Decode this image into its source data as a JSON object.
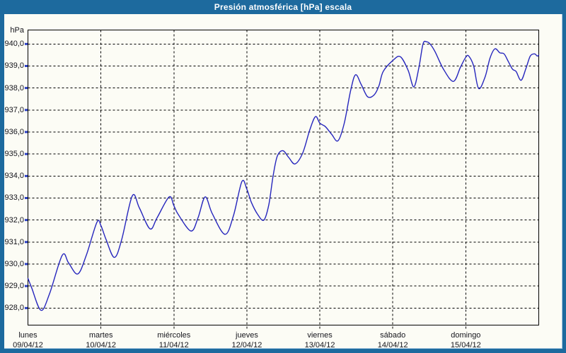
{
  "window": {
    "title": "Presión atmosférica [hPa] escala"
  },
  "colors": {
    "frame": "#1d6a9e",
    "titlebar_text": "#ffffff",
    "content_bg": "#fcfcf5",
    "grid": "#000000",
    "line": "#2626bd",
    "y_tick": "#2b3fc4",
    "label_text": "#15151c"
  },
  "chart_data": {
    "type": "line",
    "title": "Presión atmosférica [hPa] escala",
    "grid": "dashed",
    "legend": "none",
    "y_axis": {
      "unit": "hPa",
      "top_value": 940,
      "step": 1,
      "decimal_separator": ",",
      "labels": [
        "940,0",
        "939,0",
        "938,0",
        "937,0",
        "936,0",
        "935,0",
        "934,0",
        "933,0",
        "932,0",
        "931,0",
        "930,0",
        "929,0",
        "928,0"
      ]
    },
    "ylim": [
      927.2,
      940.6
    ],
    "x_axis": {
      "range_days": [
        0,
        7
      ],
      "days": [
        {
          "name": "lunes",
          "date": "09/04/12"
        },
        {
          "name": "martes",
          "date": "10/04/12"
        },
        {
          "name": "miércoles",
          "date": "11/04/12"
        },
        {
          "name": "jueves",
          "date": "12/04/12"
        },
        {
          "name": "viernes",
          "date": "13/04/12"
        },
        {
          "name": "sábado",
          "date": "14/04/12"
        },
        {
          "name": "domingo",
          "date": "15/04/12"
        }
      ]
    },
    "series": [
      {
        "name": "presión atmosférica",
        "unit": "hPa",
        "color": "#2626bd",
        "points": [
          [
            0,
            929.35
          ],
          [
            0.053,
            928.9
          ],
          [
            0.179,
            927.9
          ],
          [
            0.296,
            928.65
          ],
          [
            0.47,
            930.4
          ],
          [
            0.557,
            930.05
          ],
          [
            0.683,
            929.55
          ],
          [
            0.8,
            930.4
          ],
          [
            0.945,
            931.9
          ],
          [
            1,
            931.75
          ],
          [
            1.072,
            931.1
          ],
          [
            1.184,
            930.3
          ],
          [
            1.284,
            931.1
          ],
          [
            1.43,
            933.1
          ],
          [
            1.527,
            932.55
          ],
          [
            1.672,
            931.6
          ],
          [
            1.769,
            932.1
          ],
          [
            1.934,
            933.05
          ],
          [
            2,
            932.65
          ],
          [
            2.06,
            932.25
          ],
          [
            2.234,
            931.5
          ],
          [
            2.331,
            932.1
          ],
          [
            2.428,
            933.05
          ],
          [
            2.525,
            932.3
          ],
          [
            2.7,
            931.35
          ],
          [
            2.816,
            932.2
          ],
          [
            2.932,
            933.75
          ],
          [
            3,
            933.4
          ],
          [
            3.062,
            932.8
          ],
          [
            3.149,
            932.25
          ],
          [
            3.233,
            932
          ],
          [
            3.301,
            932.7
          ],
          [
            3.359,
            934
          ],
          [
            3.417,
            934.9
          ],
          [
            3.495,
            935.15
          ],
          [
            3.572,
            934.85
          ],
          [
            3.66,
            934.55
          ],
          [
            3.766,
            935.05
          ],
          [
            3.863,
            936.1
          ],
          [
            3.94,
            936.7
          ],
          [
            4,
            936.4
          ],
          [
            4.074,
            936.25
          ],
          [
            4.161,
            935.9
          ],
          [
            4.248,
            935.6
          ],
          [
            4.335,
            936.4
          ],
          [
            4.423,
            937.9
          ],
          [
            4.49,
            938.6
          ],
          [
            4.568,
            938.15
          ],
          [
            4.655,
            937.6
          ],
          [
            4.742,
            937.68
          ],
          [
            4.81,
            938.1
          ],
          [
            4.868,
            938.75
          ],
          [
            5,
            939.25
          ],
          [
            5.104,
            939.42
          ],
          [
            5.21,
            938.8
          ],
          [
            5.288,
            938.05
          ],
          [
            5.356,
            938.9
          ],
          [
            5.414,
            940
          ],
          [
            5.462,
            940.1
          ],
          [
            5.511,
            940
          ],
          [
            5.579,
            939.65
          ],
          [
            5.695,
            938.85
          ],
          [
            5.831,
            938.3
          ],
          [
            5.928,
            938.95
          ],
          [
            6,
            939.4
          ],
          [
            6.041,
            939.45
          ],
          [
            6.108,
            939
          ],
          [
            6.176,
            937.98
          ],
          [
            6.264,
            938.5
          ],
          [
            6.331,
            939.35
          ],
          [
            6.399,
            939.78
          ],
          [
            6.467,
            939.6
          ],
          [
            6.525,
            939.55
          ],
          [
            6.583,
            939.2
          ],
          [
            6.641,
            938.85
          ],
          [
            6.69,
            938.75
          ],
          [
            6.758,
            938.35
          ],
          [
            6.825,
            938.9
          ],
          [
            6.884,
            939.45
          ],
          [
            6.942,
            939.55
          ],
          [
            6.98,
            939.45
          ],
          [
            7,
            939.5
          ]
        ]
      }
    ]
  }
}
